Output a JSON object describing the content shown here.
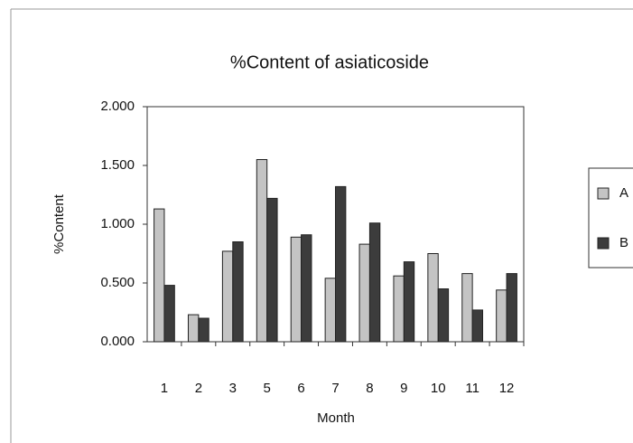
{
  "chart_data": {
    "type": "bar",
    "title": "%Content of asiaticoside",
    "x_label": "Month",
    "y_label": "%Content",
    "categories": [
      "1",
      "2",
      "3",
      "5",
      "6",
      "7",
      "8",
      "9",
      "10",
      "11",
      "12"
    ],
    "series": [
      {
        "name": "A",
        "color": "#c4c4c4",
        "values": [
          1.13,
          0.23,
          0.77,
          1.55,
          0.89,
          0.54,
          0.83,
          0.56,
          0.75,
          0.58,
          0.44
        ]
      },
      {
        "name": "B",
        "color": "#3c3c3c",
        "values": [
          0.48,
          0.2,
          0.85,
          1.22,
          0.91,
          1.32,
          1.01,
          0.68,
          0.45,
          0.27,
          0.58
        ]
      }
    ],
    "ylim": [
      0,
      2
    ],
    "yticks": [
      {
        "value": 0,
        "label": "0.000"
      },
      {
        "value": 0.5,
        "label": "0.500"
      },
      {
        "value": 1,
        "label": "1.000"
      },
      {
        "value": 1.5,
        "label": "1.500"
      },
      {
        "value": 2,
        "label": "2.000"
      }
    ],
    "grid": false,
    "legend": "right"
  }
}
